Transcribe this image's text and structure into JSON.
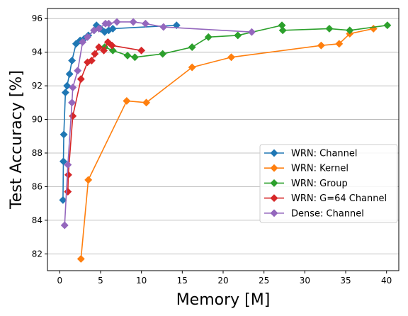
{
  "chart_data": {
    "type": "line",
    "xlabel": "Memory [M]",
    "ylabel": "Test Accuracy [%]",
    "xlim": [
      -1.5,
      41.5
    ],
    "ylim": [
      81,
      96.6
    ],
    "xticks": [
      0,
      5,
      10,
      15,
      20,
      25,
      30,
      35,
      40
    ],
    "yticks": [
      82,
      84,
      86,
      88,
      90,
      92,
      94,
      96
    ],
    "grid": "horizontal",
    "legend_position": "center-right",
    "marker": "diamond",
    "series": [
      {
        "name": "WRN: Channel",
        "color": "#1f77b4",
        "points": [
          [
            0.4,
            85.2
          ],
          [
            0.45,
            87.5
          ],
          [
            0.5,
            89.1
          ],
          [
            0.7,
            91.6
          ],
          [
            0.9,
            92.0
          ],
          [
            1.2,
            92.7
          ],
          [
            1.5,
            93.5
          ],
          [
            2.0,
            94.5
          ],
          [
            2.5,
            94.7
          ],
          [
            3.0,
            94.8
          ],
          [
            3.5,
            95.0
          ],
          [
            4.2,
            95.3
          ],
          [
            4.5,
            95.6
          ],
          [
            5.0,
            95.4
          ],
          [
            5.5,
            95.2
          ],
          [
            6.0,
            95.3
          ],
          [
            6.5,
            95.4
          ],
          [
            14.3,
            95.6
          ]
        ]
      },
      {
        "name": "WRN: Kernel",
        "color": "#ff7f0e",
        "points": [
          [
            2.6,
            81.7
          ],
          [
            3.5,
            86.4
          ],
          [
            8.2,
            91.1
          ],
          [
            10.6,
            91.0
          ],
          [
            16.2,
            93.1
          ],
          [
            21.0,
            93.7
          ],
          [
            32.0,
            94.4
          ],
          [
            34.2,
            94.5
          ],
          [
            35.5,
            95.1
          ],
          [
            38.4,
            95.4
          ]
        ]
      },
      {
        "name": "WRN: Group",
        "color": "#2ca02c",
        "points": [
          [
            5.5,
            94.3
          ],
          [
            6.5,
            94.1
          ],
          [
            8.3,
            93.8
          ],
          [
            9.2,
            93.7
          ],
          [
            12.6,
            93.9
          ],
          [
            16.2,
            94.3
          ],
          [
            18.2,
            94.9
          ],
          [
            21.8,
            95.0
          ],
          [
            27.2,
            95.6
          ],
          [
            27.3,
            95.3
          ],
          [
            33.0,
            95.4
          ],
          [
            35.5,
            95.3
          ],
          [
            40.1,
            95.6
          ]
        ]
      },
      {
        "name": "WRN: G=64 Channel",
        "color": "#d62728",
        "points": [
          [
            1.0,
            85.7
          ],
          [
            1.05,
            86.7
          ],
          [
            1.6,
            90.2
          ],
          [
            2.6,
            92.4
          ],
          [
            3.4,
            93.4
          ],
          [
            3.9,
            93.5
          ],
          [
            4.3,
            93.9
          ],
          [
            4.8,
            94.3
          ],
          [
            5.4,
            94.1
          ],
          [
            5.9,
            94.6
          ],
          [
            6.4,
            94.4
          ],
          [
            10.0,
            94.1
          ]
        ]
      },
      {
        "name": "Dense: Channel",
        "color": "#9467bd",
        "points": [
          [
            0.6,
            83.7
          ],
          [
            1.0,
            87.3
          ],
          [
            1.5,
            91.0
          ],
          [
            1.6,
            91.9
          ],
          [
            2.2,
            92.9
          ],
          [
            2.8,
            94.6
          ],
          [
            3.4,
            94.9
          ],
          [
            4.2,
            95.3
          ],
          [
            4.8,
            95.4
          ],
          [
            5.6,
            95.7
          ],
          [
            6.0,
            95.7
          ],
          [
            7.0,
            95.8
          ],
          [
            9.0,
            95.8
          ],
          [
            10.5,
            95.7
          ],
          [
            12.7,
            95.5
          ],
          [
            23.5,
            95.2
          ]
        ]
      }
    ]
  }
}
